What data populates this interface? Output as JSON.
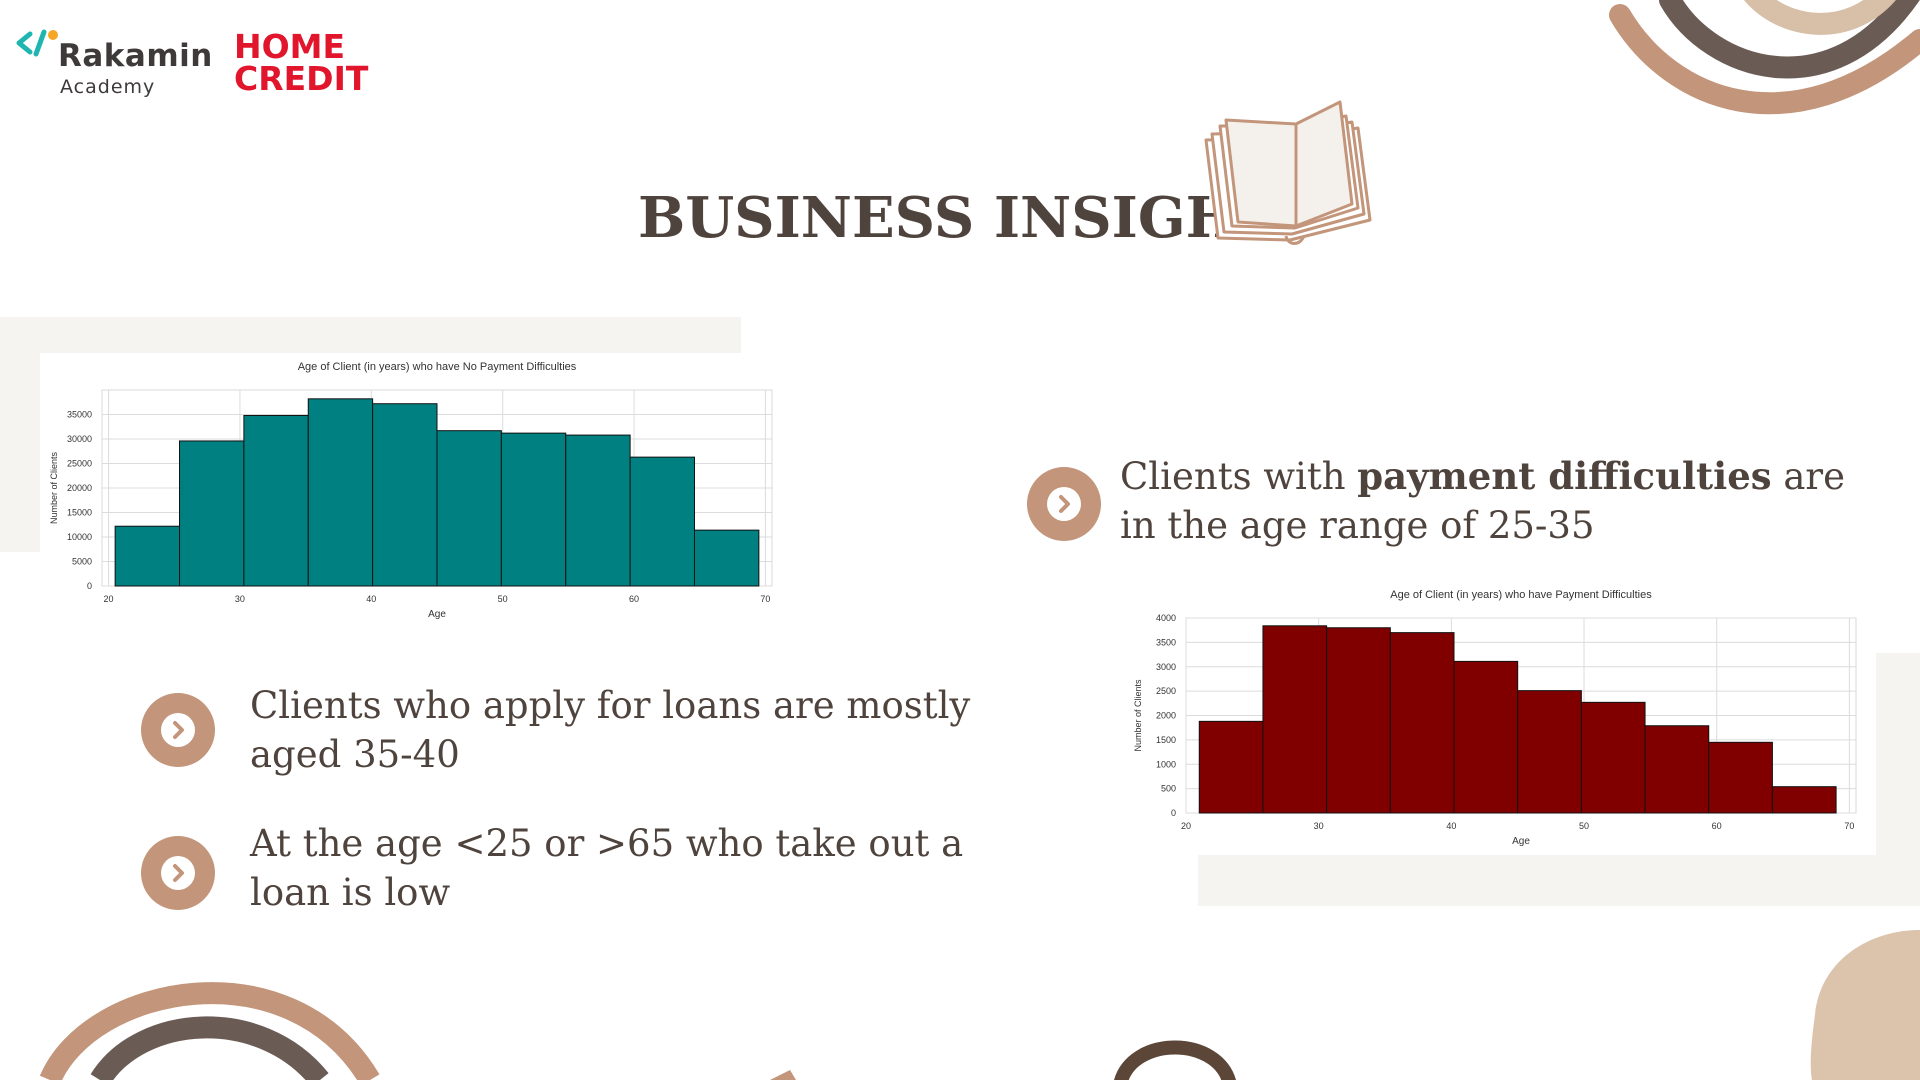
{
  "logos": {
    "rakamin_word": "Rakamin",
    "rakamin_sub": "Academy",
    "home": "HOME",
    "credit": "CREDIT"
  },
  "title": "BUSINESS INSIGHT",
  "bullets": {
    "b1_pre": "Clients with ",
    "b1_bold": "payment difficulties",
    "b1_post": " are",
    "b1_line2": "in the age range of 25-35",
    "b2_line1": "Clients who apply for loans are mostly",
    "b2_line2": "aged 35-40",
    "b3_line1": "At the age <25 or >65 who take out a",
    "b3_line2": "loan is low"
  },
  "colors": {
    "accent": "#c3957a",
    "title": "#4f433d",
    "teal": "#008080",
    "maroon": "#800000",
    "panel": "#f6f4f0"
  },
  "chart_data": [
    {
      "type": "bar",
      "title": "Age of Client (in years) who have No Payment Difficulties",
      "xlabel": "Age",
      "ylabel": "Number of Clients",
      "bin_edges": [
        20.5,
        25.4,
        30.3,
        35.2,
        40.1,
        45.0,
        49.9,
        54.8,
        59.7,
        64.6,
        69.5
      ],
      "values": [
        12200,
        29600,
        34800,
        38200,
        37200,
        31700,
        31200,
        30800,
        26300,
        11400
      ],
      "xlim": [
        19.5,
        70.5
      ],
      "ylim": [
        0,
        40000
      ],
      "xticks": [
        20,
        30,
        40,
        50,
        60,
        70
      ],
      "yticks": [
        0,
        5000,
        10000,
        15000,
        20000,
        25000,
        30000,
        35000
      ],
      "grid": true,
      "color": "#008080"
    },
    {
      "type": "bar",
      "title": "Age of Client (in years) who have Payment Difficulties",
      "xlabel": "Age",
      "ylabel": "Number of Clients",
      "bin_edges": [
        21.0,
        25.8,
        30.6,
        35.4,
        40.2,
        45.0,
        49.8,
        54.6,
        59.4,
        64.2,
        69.0
      ],
      "values": [
        1880,
        3840,
        3800,
        3700,
        3110,
        2510,
        2270,
        1790,
        1450,
        540
      ],
      "xlim": [
        20,
        70.5
      ],
      "ylim": [
        0,
        4000
      ],
      "xticks": [
        20,
        30,
        40,
        50,
        60,
        70
      ],
      "yticks": [
        0,
        500,
        1000,
        1500,
        2000,
        2500,
        3000,
        3500,
        4000
      ],
      "grid": true,
      "color": "#800000"
    }
  ]
}
